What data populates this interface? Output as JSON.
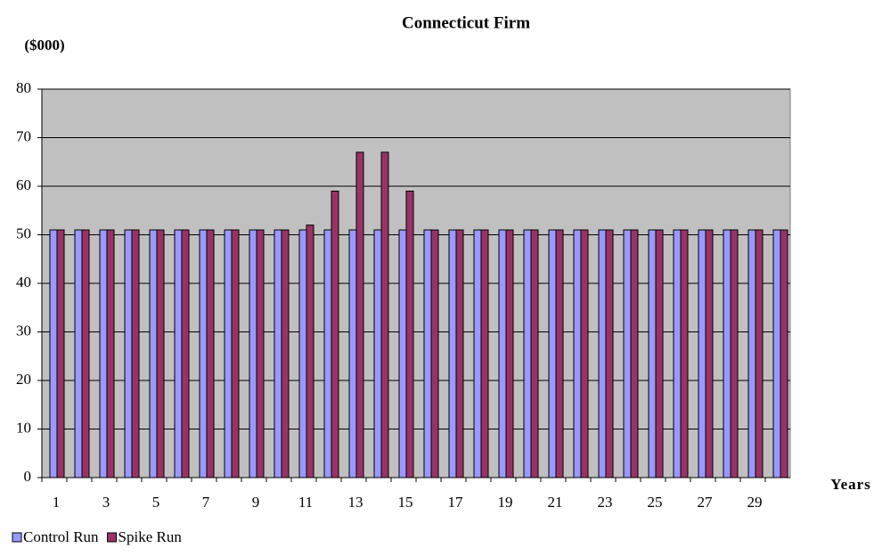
{
  "chart_data": {
    "type": "bar",
    "title": "Connecticut Firm",
    "y_label": "($000)",
    "x_label": "Years",
    "categories": [
      1,
      null,
      3,
      null,
      5,
      null,
      7,
      null,
      9,
      null,
      11,
      null,
      13,
      null,
      15,
      null,
      17,
      null,
      19,
      null,
      21,
      null,
      23,
      null,
      25,
      null,
      27,
      null,
      29,
      null
    ],
    "series": [
      {
        "name": "Control Run",
        "color": "#9999ff",
        "values": [
          51,
          51,
          51,
          51,
          51,
          51,
          51,
          51,
          51,
          51,
          51,
          51,
          51,
          51,
          51,
          51,
          51,
          51,
          51,
          51,
          51,
          51,
          51,
          51,
          51,
          51,
          51,
          51,
          51,
          51
        ]
      },
      {
        "name": "Spike Run",
        "color": "#993366",
        "values": [
          51,
          51,
          51,
          51,
          51,
          51,
          51,
          51,
          51,
          51,
          52,
          59,
          67,
          67,
          59,
          51,
          51,
          51,
          51,
          51,
          51,
          51,
          51,
          51,
          51,
          51,
          51,
          51,
          51,
          51
        ]
      }
    ],
    "ylim": [
      0,
      80
    ],
    "yticks": [
      0,
      10,
      20,
      30,
      40,
      50,
      60,
      70,
      80
    ],
    "grid": true,
    "plot_background": "#c0c0c0",
    "legend": "bottom-left"
  }
}
